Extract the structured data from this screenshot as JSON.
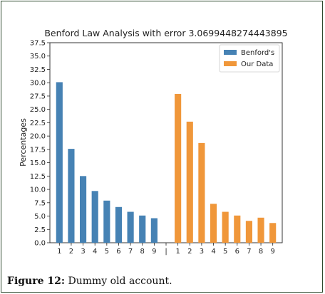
{
  "chart_data": {
    "type": "bar",
    "title": "Benford Law Analysis with error 3.0699448274443895",
    "xlabel": "",
    "ylabel": "Percentages",
    "ylim": [
      0,
      37.5
    ],
    "yticks": [
      "0.0",
      "2.5",
      "5.0",
      "7.5",
      "10.0",
      "12.5",
      "15.0",
      "17.5",
      "20.0",
      "22.5",
      "25.0",
      "27.5",
      "30.0",
      "32.5",
      "35.0",
      "37.5"
    ],
    "categories": [
      "1",
      "2",
      "3",
      "4",
      "5",
      "6",
      "7",
      "8",
      "9",
      "|",
      "1",
      "2",
      "3",
      "4",
      "5",
      "6",
      "7",
      "8",
      "9"
    ],
    "legend_position": "top-right",
    "grid": false,
    "series": [
      {
        "name": "Benford's",
        "color": "#4682b4",
        "values": [
          30.1,
          17.6,
          12.5,
          9.7,
          7.9,
          6.7,
          5.8,
          5.1,
          4.6,
          null,
          null,
          null,
          null,
          null,
          null,
          null,
          null,
          null,
          null
        ]
      },
      {
        "name": "Our Data",
        "color": "#f0973a",
        "values": [
          null,
          null,
          null,
          null,
          null,
          null,
          null,
          null,
          null,
          null,
          27.9,
          22.7,
          18.7,
          7.3,
          5.8,
          5.1,
          4.1,
          4.7,
          3.7
        ]
      }
    ]
  },
  "caption": {
    "label": "Figure 12:",
    "text": " Dummy old account."
  }
}
